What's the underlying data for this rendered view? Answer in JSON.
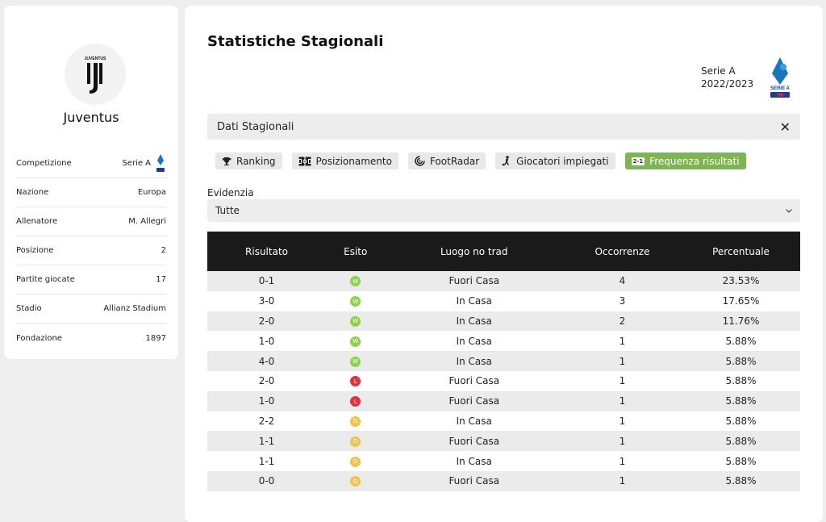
{
  "team": {
    "name": "Juventus",
    "info": [
      {
        "label": "Competizione",
        "value": "Serie A",
        "logo": true
      },
      {
        "label": "Nazione",
        "value": "Europa"
      },
      {
        "label": "Allenatore",
        "value": "M. Allegri"
      },
      {
        "label": "Posizione",
        "value": "2"
      },
      {
        "label": "Partite giocate",
        "value": "17"
      },
      {
        "label": "Stadio",
        "value": "Allianz Stadium"
      },
      {
        "label": "Fondazione",
        "value": "1897"
      }
    ]
  },
  "main": {
    "title": "Statistiche Stagionali",
    "league": "Serie A",
    "season": "2022/2023",
    "panel_title": "Dati Stagionali",
    "close_icon": "✕",
    "tabs": [
      {
        "label": "Ranking",
        "icon": "trophy-icon"
      },
      {
        "label": "Posizionamento",
        "icon": "pitch-icon"
      },
      {
        "label": "FootRadar",
        "icon": "radar-icon"
      },
      {
        "label": "Giocatori impiegati",
        "icon": "player-icon"
      },
      {
        "label": "Frequenza risultati",
        "icon": "score-badge-icon",
        "badge": "2-1",
        "active": true
      }
    ],
    "filter_label": "Evidenzia",
    "filter_value": "Tutte"
  },
  "table": {
    "headers": [
      "Risultato",
      "Esito",
      "Luogo no trad",
      "Occorrenze",
      "Percentuale"
    ],
    "rows": [
      {
        "result": "0-1",
        "outcome": "W",
        "place": "Fuori Casa",
        "count": "4",
        "pct": "23.53%"
      },
      {
        "result": "3-0",
        "outcome": "W",
        "place": "In Casa",
        "count": "3",
        "pct": "17.65%"
      },
      {
        "result": "2-0",
        "outcome": "W",
        "place": "In Casa",
        "count": "2",
        "pct": "11.76%"
      },
      {
        "result": "1-0",
        "outcome": "W",
        "place": "In Casa",
        "count": "1",
        "pct": "5.88%"
      },
      {
        "result": "4-0",
        "outcome": "W",
        "place": "In Casa",
        "count": "1",
        "pct": "5.88%"
      },
      {
        "result": "2-0",
        "outcome": "L",
        "place": "Fuori Casa",
        "count": "1",
        "pct": "5.88%"
      },
      {
        "result": "1-0",
        "outcome": "L",
        "place": "Fuori Casa",
        "count": "1",
        "pct": "5.88%"
      },
      {
        "result": "2-2",
        "outcome": "D",
        "place": "In Casa",
        "count": "1",
        "pct": "5.88%"
      },
      {
        "result": "1-1",
        "outcome": "D",
        "place": "Fuori Casa",
        "count": "1",
        "pct": "5.88%"
      },
      {
        "result": "1-1",
        "outcome": "D",
        "place": "In Casa",
        "count": "1",
        "pct": "5.88%"
      },
      {
        "result": "0-0",
        "outcome": "D",
        "place": "Fuori Casa",
        "count": "1",
        "pct": "5.88%"
      }
    ]
  },
  "colors": {
    "win": "#8fd14f",
    "loss": "#d9363e",
    "draw": "#f2c14e",
    "active_tab": "#7fb550",
    "header_bg": "#1a1a1a"
  }
}
